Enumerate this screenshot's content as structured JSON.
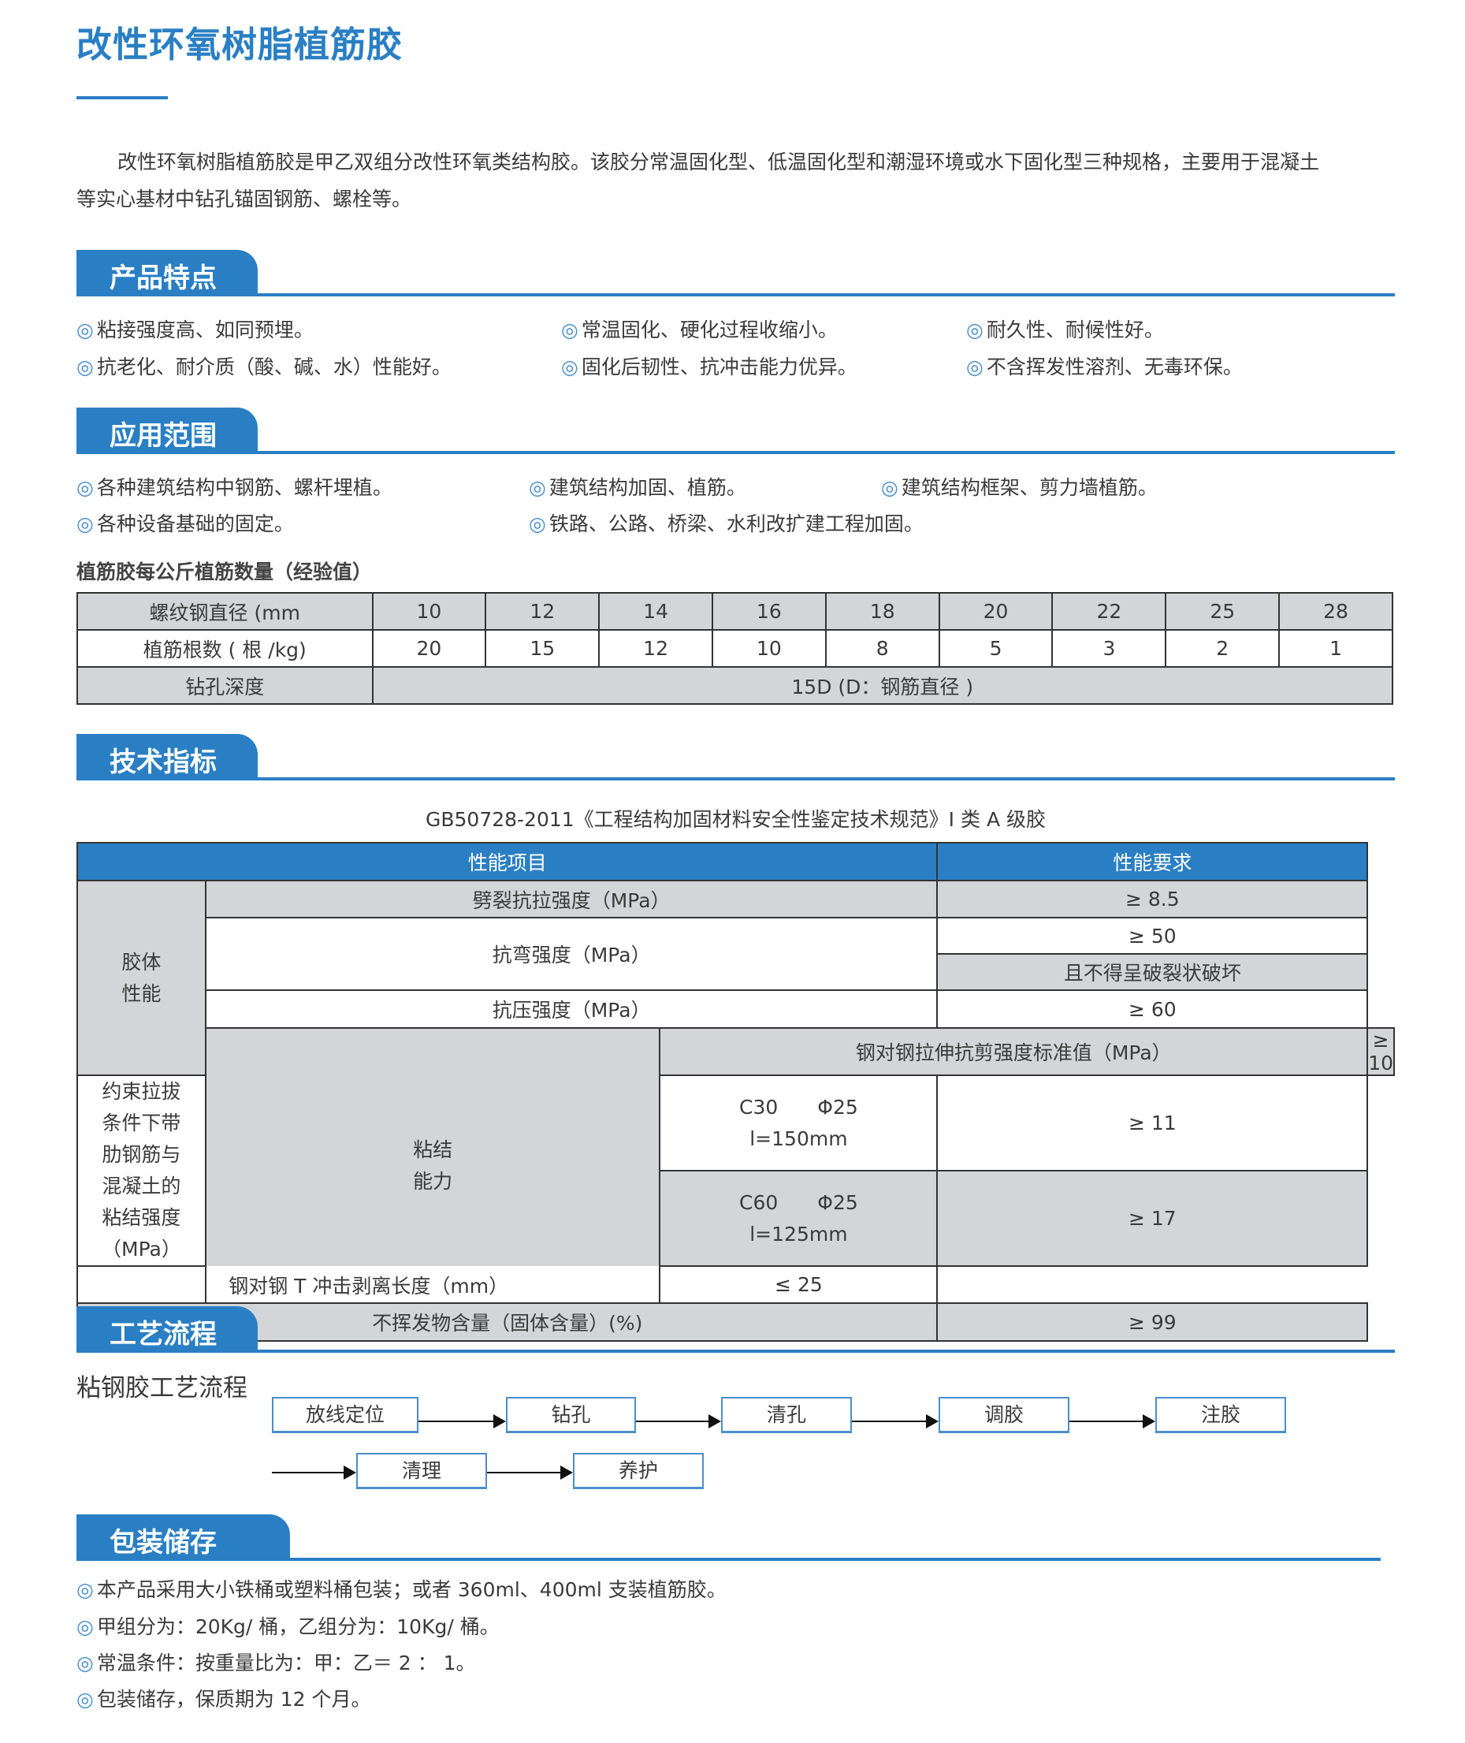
{
  "title": "改性环氧树脂植筋胶",
  "intro": {
    "line1": "改性环氧树脂植筋胶是甲乙双组分改性环氧类结构胶。该胶分常温固化型、低温固化型和潮湿环境或水下固化型三种规格，主要用于混凝土",
    "line2": "等实心基材中钻孔锚固钢筋、螺栓等。"
  },
  "bullet_icon": "◎",
  "features": {
    "heading": "产品特点",
    "items": [
      "粘接强度高、如同预埋。",
      "常温固化、硬化过程收缩小。",
      "耐久性、耐候性好。",
      "抗老化、耐介质（酸、碱、水）性能好。",
      "固化后韧性、抗冲击能力优异。",
      "不含挥发性溶剂、无毒环保。"
    ]
  },
  "applications": {
    "heading": "应用范围",
    "items": [
      "各种建筑结构中钢筋、螺杆埋植。",
      "建筑结构加固、植筋。",
      "建筑结构框架、剪力墙植筋。",
      "各种设备基础的固定。",
      "铁路、公路、桥梁、水利改扩建工程加固。"
    ]
  },
  "rebar_table": {
    "caption": "植筋胶每公斤植筋数量（经验值）",
    "row_labels": [
      "螺纹钢直径 (mm",
      "植筋根数 ( 根 /kg)",
      "钻孔深度"
    ],
    "diameters": [
      "10",
      "12",
      "14",
      "16",
      "18",
      "20",
      "22",
      "25",
      "28"
    ],
    "counts": [
      "20",
      "15",
      "12",
      "10",
      "8",
      "5",
      "3",
      "2",
      "1"
    ],
    "depth": "15D (D：钢筋直径 )"
  },
  "tech": {
    "heading": "技术指标",
    "caption": "GB50728-2011《工程结构加固材料安全性鉴定技术规范》I 类 A 级胶",
    "col1": "性能项目",
    "col2": "性能要求",
    "group1": "胶体\n性能",
    "group2": "粘结\n能力",
    "r1": {
      "item": "劈裂抗拉强度（MPa）",
      "req": "≥ 8.5"
    },
    "r2": {
      "item": "抗弯强度（MPa）",
      "req": "≥ 50",
      "req2": "且不得呈破裂状破坏"
    },
    "r3": {
      "item": "抗压强度（MPa）",
      "req": "≥ 60"
    },
    "r4": {
      "item": "钢对钢拉伸抗剪强度标准值（MPa）",
      "req": "≥ 10"
    },
    "r5": {
      "item": "约束拉拔条件下带肋钢筋与混凝土的粘结强度（MPa）",
      "c30": "C30　　Φ25",
      "c30l": "l=150mm",
      "req30": "≥ 11",
      "c60": "C60　　Φ25",
      "c60l": "l=125mm",
      "req60": "≥ 17"
    },
    "r6": {
      "item": "钢对钢 T 冲击剥离长度（mm）",
      "req": "≤ 25"
    },
    "r7": {
      "item": "不挥发物含量（固体含量）(%)",
      "req": "≥ 99"
    }
  },
  "process": {
    "heading": "工艺流程",
    "subtitle": "粘钢胶工艺流程",
    "steps": [
      "放线定位",
      "钻孔",
      "清孔",
      "调胶",
      "注胶",
      "清理",
      "养护"
    ]
  },
  "packaging": {
    "heading": "包装储存",
    "items": [
      "本产品采用大小铁桶或塑料桶包装；或者 360ml、400ml 支装植筋胶。",
      "甲组分为：20Kg/ 桶，乙组分为：10Kg/ 桶。",
      "常温条件：按重量比为：甲：乙＝ 2 ： 1。",
      "包装储存，保质期为 12 个月。"
    ]
  },
  "colors": {
    "accent": "#2a7fc4",
    "table_grey": "#d3d5d8"
  }
}
